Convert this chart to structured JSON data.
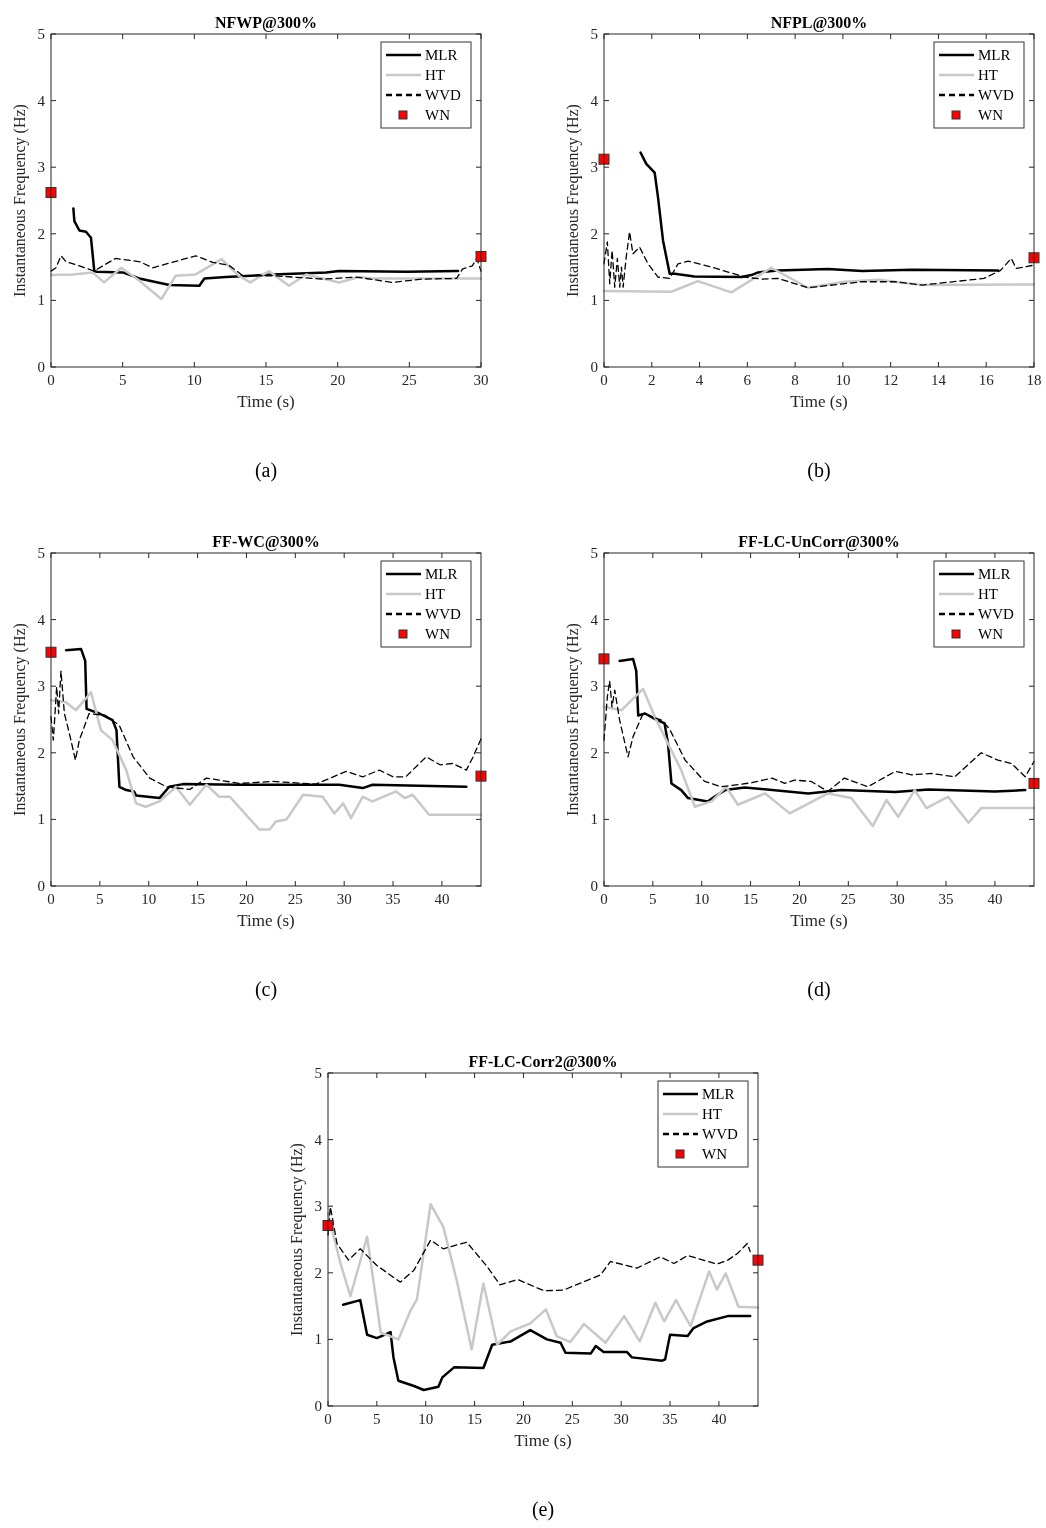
{
  "chart_data": [
    {
      "type": "line",
      "title": "NFWP@300%",
      "xlabel": "Time (s)",
      "ylabel": "Instantaneous Frequency (Hz)",
      "xlim": [
        0,
        30
      ],
      "xticks": [
        0,
        5,
        10,
        15,
        20,
        25,
        30
      ],
      "ylim": [
        0,
        5
      ],
      "yticks": [
        0,
        1,
        2,
        3,
        4,
        5
      ],
      "legend": "top right",
      "annotations": [
        "(a)"
      ],
      "series": [
        {
          "name": "MLR",
          "color": "#000000",
          "line_style": "solid",
          "x": [
            1.56,
            1.63,
            1.98,
            2.44,
            2.79,
            3.02,
            3.19,
            5,
            6.16,
            8.26,
            10.35,
            10.7,
            12.2,
            15.5,
            19.2,
            20.1,
            24.8,
            28.4
          ],
          "values": [
            2.38,
            2.19,
            2.05,
            2.03,
            1.94,
            1.44,
            1.43,
            1.42,
            1.33,
            1.23,
            1.22,
            1.33,
            1.35,
            1.39,
            1.42,
            1.44,
            1.43,
            1.44
          ]
        },
        {
          "name": "HT",
          "color": "#c8c8c8",
          "line_style": "solid",
          "x": [
            0,
            1.5,
            2.9,
            3.7,
            4.9,
            6.2,
            7.7,
            8.7,
            10.1,
            11.9,
            13.1,
            13.9,
            15.2,
            16.6,
            17.8,
            20.1,
            21.5,
            22.4,
            30
          ],
          "values": [
            1.38,
            1.39,
            1.42,
            1.27,
            1.49,
            1.29,
            1.02,
            1.37,
            1.39,
            1.62,
            1.37,
            1.27,
            1.44,
            1.22,
            1.39,
            1.27,
            1.35,
            1.33,
            1.33
          ]
        },
        {
          "name": "WVD",
          "color": "#000000",
          "line_style": "dashed",
          "x": [
            0,
            0.35,
            0.7,
            1.05,
            1.98,
            3.0,
            4.5,
            6.2,
            7.1,
            10.1,
            11.3,
            12.4,
            13.4,
            15.5,
            19.0,
            21.3,
            23.8,
            25.9,
            28.3,
            28.7,
            29.4,
            29.7,
            30
          ],
          "values": [
            1.44,
            1.49,
            1.67,
            1.58,
            1.52,
            1.44,
            1.63,
            1.58,
            1.49,
            1.67,
            1.57,
            1.53,
            1.37,
            1.37,
            1.32,
            1.35,
            1.27,
            1.32,
            1.33,
            1.47,
            1.52,
            1.63,
            1.44
          ]
        },
        {
          "name": "WN",
          "type": "scatter",
          "marker": "square",
          "color": "#ff0000",
          "x": [
            0,
            30
          ],
          "values": [
            2.62,
            1.66
          ]
        }
      ]
    },
    {
      "type": "line",
      "title": "NFPL@300%",
      "xlabel": "Time (s)",
      "ylabel": "Instantaneous Frequency (Hz)",
      "xlim": [
        0,
        18
      ],
      "xticks": [
        0,
        2,
        4,
        6,
        8,
        10,
        12,
        14,
        16,
        18
      ],
      "ylim": [
        0,
        5
      ],
      "yticks": [
        0,
        1,
        2,
        3,
        4,
        5
      ],
      "legend": "top right",
      "annotations": [
        "(b)"
      ],
      "series": [
        {
          "name": "MLR",
          "color": "#000000",
          "line_style": "solid",
          "x": [
            1.53,
            1.77,
            2.12,
            2.26,
            2.47,
            2.75,
            2.96,
            3.79,
            5.75,
            6.17,
            6.45,
            7.28,
            9.37,
            10.8,
            12.9,
            16.5
          ],
          "values": [
            3.22,
            3.05,
            2.92,
            2.55,
            1.9,
            1.4,
            1.4,
            1.36,
            1.35,
            1.38,
            1.42,
            1.45,
            1.47,
            1.44,
            1.46,
            1.45
          ]
        },
        {
          "name": "HT",
          "color": "#c8c8c8",
          "line_style": "solid",
          "x": [
            0,
            2.82,
            3.93,
            5.33,
            7.0,
            8.54,
            10.07,
            11.5,
            13.3,
            18
          ],
          "values": [
            1.14,
            1.13,
            1.29,
            1.12,
            1.49,
            1.19,
            1.28,
            1.31,
            1.23,
            1.24
          ]
        },
        {
          "name": "WVD",
          "color": "#000000",
          "line_style": "dashed",
          "x": [
            0,
            0.14,
            0.24,
            0.34,
            0.45,
            0.56,
            0.66,
            0.73,
            0.8,
            0.93,
            1.07,
            1.21,
            1.49,
            1.84,
            2.26,
            2.75,
            3.1,
            3.52,
            4.5,
            5.89,
            6.58,
            7.28,
            8.54,
            10.8,
            12.2,
            13.3,
            15.9,
            16.6,
            17.05,
            17.25,
            17.6,
            18
          ],
          "values": [
            1.55,
            1.88,
            1.25,
            1.75,
            1.2,
            1.63,
            1.2,
            1.5,
            1.2,
            1.65,
            2.03,
            1.7,
            1.8,
            1.55,
            1.35,
            1.33,
            1.55,
            1.59,
            1.5,
            1.35,
            1.32,
            1.33,
            1.19,
            1.28,
            1.28,
            1.23,
            1.33,
            1.45,
            1.63,
            1.48,
            1.5,
            1.53
          ]
        },
        {
          "name": "WN",
          "type": "scatter",
          "marker": "square",
          "color": "#ff0000",
          "x": [
            0,
            18
          ],
          "values": [
            3.12,
            1.64
          ]
        }
      ]
    },
    {
      "type": "line",
      "title": "FF-WC@300%",
      "xlabel": "Time (s)",
      "ylabel": "Instantaneous Frequency (Hz)",
      "xlim": [
        0,
        44
      ],
      "xticks": [
        0,
        5,
        10,
        15,
        20,
        25,
        30,
        35,
        40
      ],
      "ylim": [
        0,
        5
      ],
      "yticks": [
        0,
        1,
        2,
        3,
        4,
        5
      ],
      "legend": "top right",
      "annotations": [
        "(c)"
      ],
      "series": [
        {
          "name": "MLR",
          "color": "#000000",
          "line_style": "solid",
          "x": [
            1.54,
            3.07,
            3.5,
            3.64,
            4.95,
            6.3,
            6.7,
            7.0,
            7.7,
            8.5,
            8.7,
            11.1,
            12.1,
            13.5,
            19.3,
            29.5,
            31.9,
            32.9,
            42.5
          ],
          "values": [
            3.54,
            3.56,
            3.38,
            2.66,
            2.59,
            2.49,
            2.34,
            1.49,
            1.44,
            1.42,
            1.36,
            1.32,
            1.49,
            1.53,
            1.52,
            1.52,
            1.47,
            1.52,
            1.49
          ]
        },
        {
          "name": "HT",
          "color": "#c8c8c8",
          "line_style": "solid",
          "x": [
            0,
            1.54,
            2.56,
            4.1,
            5.1,
            6.3,
            7.7,
            8.7,
            9.7,
            11.1,
            12.8,
            14.2,
            15.9,
            17.2,
            18.3,
            21.3,
            22.4,
            23.0,
            24.1,
            25.8,
            27.8,
            29.0,
            29.9,
            30.7,
            31.9,
            32.9,
            35.3,
            36.2,
            37.0,
            38.7,
            44
          ],
          "values": [
            2.79,
            2.76,
            2.64,
            2.91,
            2.34,
            2.19,
            1.74,
            1.24,
            1.19,
            1.27,
            1.49,
            1.22,
            1.52,
            1.34,
            1.34,
            0.85,
            0.85,
            0.97,
            1.0,
            1.37,
            1.34,
            1.09,
            1.24,
            1.02,
            1.34,
            1.27,
            1.42,
            1.32,
            1.37,
            1.07,
            1.07
          ]
        },
        {
          "name": "WVD",
          "color": "#000000",
          "line_style": "dashed",
          "x": [
            0,
            0.24,
            0.58,
            0.78,
            1.02,
            1.37,
            1.88,
            2.5,
            2.9,
            3.9,
            5.6,
            7.0,
            8.4,
            10.1,
            11.8,
            14.2,
            15.9,
            19.3,
            22.7,
            27.1,
            30.2,
            31.9,
            33.6,
            35.0,
            36.3,
            38.4,
            39.8,
            41.1,
            42.5,
            43.2,
            44
          ],
          "values": [
            2.54,
            2.19,
            2.99,
            2.59,
            3.23,
            2.59,
            2.29,
            1.89,
            2.19,
            2.59,
            2.56,
            2.41,
            1.94,
            1.62,
            1.49,
            1.45,
            1.62,
            1.54,
            1.57,
            1.53,
            1.72,
            1.64,
            1.74,
            1.64,
            1.64,
            1.94,
            1.82,
            1.84,
            1.74,
            1.94,
            2.21
          ]
        },
        {
          "name": "WN",
          "type": "scatter",
          "marker": "square",
          "color": "#ff0000",
          "x": [
            0,
            44
          ],
          "values": [
            3.51,
            1.65
          ]
        }
      ]
    },
    {
      "type": "line",
      "title": "FF-LC-UnCorr@300%",
      "xlabel": "Time (s)",
      "ylabel": "Instantaneous Frequency (Hz)",
      "xlim": [
        0,
        44
      ],
      "xticks": [
        0,
        5,
        10,
        15,
        20,
        25,
        30,
        35,
        40
      ],
      "ylim": [
        0,
        5
      ],
      "yticks": [
        0,
        1,
        2,
        3,
        4,
        5
      ],
      "legend": "top right",
      "annotations": [
        "(d)"
      ],
      "series": [
        {
          "name": "MLR",
          "color": "#000000",
          "line_style": "solid",
          "x": [
            1.6,
            2.97,
            3.3,
            3.5,
            4.2,
            5.2,
            6.2,
            6.55,
            6.9,
            7.9,
            8.6,
            10.6,
            11.3,
            12.4,
            14.4,
            20.9,
            24.3,
            29.8,
            33.2,
            40.0,
            43.1
          ],
          "values": [
            3.38,
            3.41,
            3.23,
            2.56,
            2.59,
            2.51,
            2.44,
            2.14,
            1.54,
            1.44,
            1.32,
            1.27,
            1.34,
            1.44,
            1.48,
            1.39,
            1.44,
            1.41,
            1.45,
            1.42,
            1.44
          ]
        },
        {
          "name": "HT",
          "color": "#c8c8c8",
          "line_style": "solid",
          "x": [
            0,
            1.8,
            4.0,
            5.2,
            6.2,
            7.9,
            9.3,
            11.0,
            12.5,
            13.7,
            16.5,
            19.0,
            22.9,
            25.3,
            27.5,
            28.9,
            30.1,
            31.8,
            33.0,
            35.2,
            37.3,
            38.6,
            44
          ],
          "values": [
            2.69,
            2.64,
            2.96,
            2.54,
            2.24,
            1.74,
            1.19,
            1.27,
            1.49,
            1.22,
            1.39,
            1.09,
            1.39,
            1.32,
            0.9,
            1.29,
            1.04,
            1.44,
            1.17,
            1.34,
            0.95,
            1.17,
            1.17
          ]
        },
        {
          "name": "WVD",
          "color": "#000000",
          "line_style": "dashed",
          "x": [
            0,
            0.34,
            0.58,
            0.82,
            1.1,
            1.6,
            2.46,
            2.97,
            4.0,
            5.9,
            6.7,
            8.3,
            10.3,
            12.0,
            15.1,
            17.2,
            18.5,
            19.5,
            21.2,
            22.9,
            24.6,
            27.0,
            29.8,
            31.5,
            33.5,
            35.9,
            38.6,
            40.3,
            41.7,
            43.1,
            44
          ],
          "values": [
            2.19,
            2.84,
            3.08,
            2.69,
            2.94,
            2.49,
            1.94,
            2.24,
            2.59,
            2.49,
            2.36,
            1.89,
            1.57,
            1.49,
            1.55,
            1.62,
            1.54,
            1.59,
            1.57,
            1.42,
            1.62,
            1.49,
            1.72,
            1.67,
            1.69,
            1.64,
            2.0,
            1.89,
            1.84,
            1.64,
            1.87
          ]
        },
        {
          "name": "WN",
          "type": "scatter",
          "marker": "square",
          "color": "#ff0000",
          "x": [
            0,
            44
          ],
          "values": [
            3.41,
            1.54
          ]
        }
      ]
    },
    {
      "type": "line",
      "title": "FF-LC-Corr2@300%",
      "xlabel": "Time (s)",
      "ylabel": "Instantaneous Frequency (Hz)",
      "xlim": [
        0,
        44
      ],
      "xticks": [
        0,
        5,
        10,
        15,
        20,
        25,
        30,
        35,
        40
      ],
      "ylim": [
        0,
        5
      ],
      "yticks": [
        0,
        1,
        2,
        3,
        4,
        5
      ],
      "legend": "top right",
      "annotations": [
        "(e)"
      ],
      "series": [
        {
          "name": "MLR",
          "color": "#000000",
          "line_style": "solid",
          "x": [
            1.54,
            3.3,
            4.0,
            5.0,
            6.4,
            6.7,
            7.2,
            8.8,
            9.8,
            11.3,
            11.7,
            12.9,
            15.9,
            16.8,
            18.7,
            20.7,
            22.4,
            23.8,
            24.3,
            26.9,
            27.4,
            28.2,
            30.6,
            31.1,
            34.2,
            34.5,
            35.0,
            36.8,
            37.4,
            38.8,
            40.9,
            43.2
          ],
          "values": [
            1.52,
            1.59,
            1.07,
            1.02,
            1.11,
            0.73,
            0.38,
            0.3,
            0.24,
            0.29,
            0.43,
            0.58,
            0.57,
            0.92,
            0.97,
            1.14,
            1.0,
            0.95,
            0.8,
            0.79,
            0.9,
            0.81,
            0.81,
            0.73,
            0.68,
            0.7,
            1.07,
            1.05,
            1.17,
            1.27,
            1.35,
            1.35
          ]
        },
        {
          "name": "HT",
          "color": "#c8c8c8",
          "line_style": "solid",
          "x": [
            0,
            1.26,
            2.29,
            4.0,
            5.4,
            7.2,
            8.4,
            9.1,
            10.5,
            11.8,
            13.2,
            14.7,
            15.9,
            17.3,
            18.7,
            20.7,
            22.3,
            23.4,
            24.8,
            26.2,
            28.4,
            30.3,
            31.9,
            33.5,
            34.4,
            35.6,
            37.1,
            39.0,
            39.8,
            40.7,
            42.0,
            44
          ],
          "values": [
            2.89,
            2.15,
            1.65,
            2.54,
            1.1,
            1.0,
            1.42,
            1.6,
            3.03,
            2.69,
            1.87,
            0.85,
            1.84,
            0.92,
            1.12,
            1.24,
            1.45,
            1.05,
            0.96,
            1.23,
            0.95,
            1.35,
            0.97,
            1.55,
            1.27,
            1.59,
            1.2,
            2.02,
            1.75,
            1.99,
            1.49,
            1.48
          ]
        },
        {
          "name": "WVD",
          "color": "#000000",
          "line_style": "dashed",
          "x": [
            0,
            0.24,
            0.92,
            2.1,
            3.3,
            5.0,
            7.4,
            8.8,
            10.5,
            11.8,
            14.2,
            16.3,
            17.6,
            19.4,
            22.1,
            24.1,
            27.9,
            28.9,
            31.6,
            34.0,
            35.4,
            36.8,
            39.8,
            40.9,
            41.9,
            42.9,
            43.2
          ],
          "values": [
            2.57,
            2.99,
            2.44,
            2.19,
            2.36,
            2.11,
            1.86,
            2.04,
            2.49,
            2.36,
            2.46,
            2.09,
            1.82,
            1.9,
            1.73,
            1.74,
            1.97,
            2.17,
            2.07,
            2.24,
            2.14,
            2.26,
            2.13,
            2.19,
            2.29,
            2.44,
            2.32
          ]
        },
        {
          "name": "WN",
          "type": "scatter",
          "marker": "square",
          "color": "#ff0000",
          "x": [
            0,
            44
          ],
          "values": [
            2.71,
            2.19
          ]
        }
      ]
    }
  ]
}
